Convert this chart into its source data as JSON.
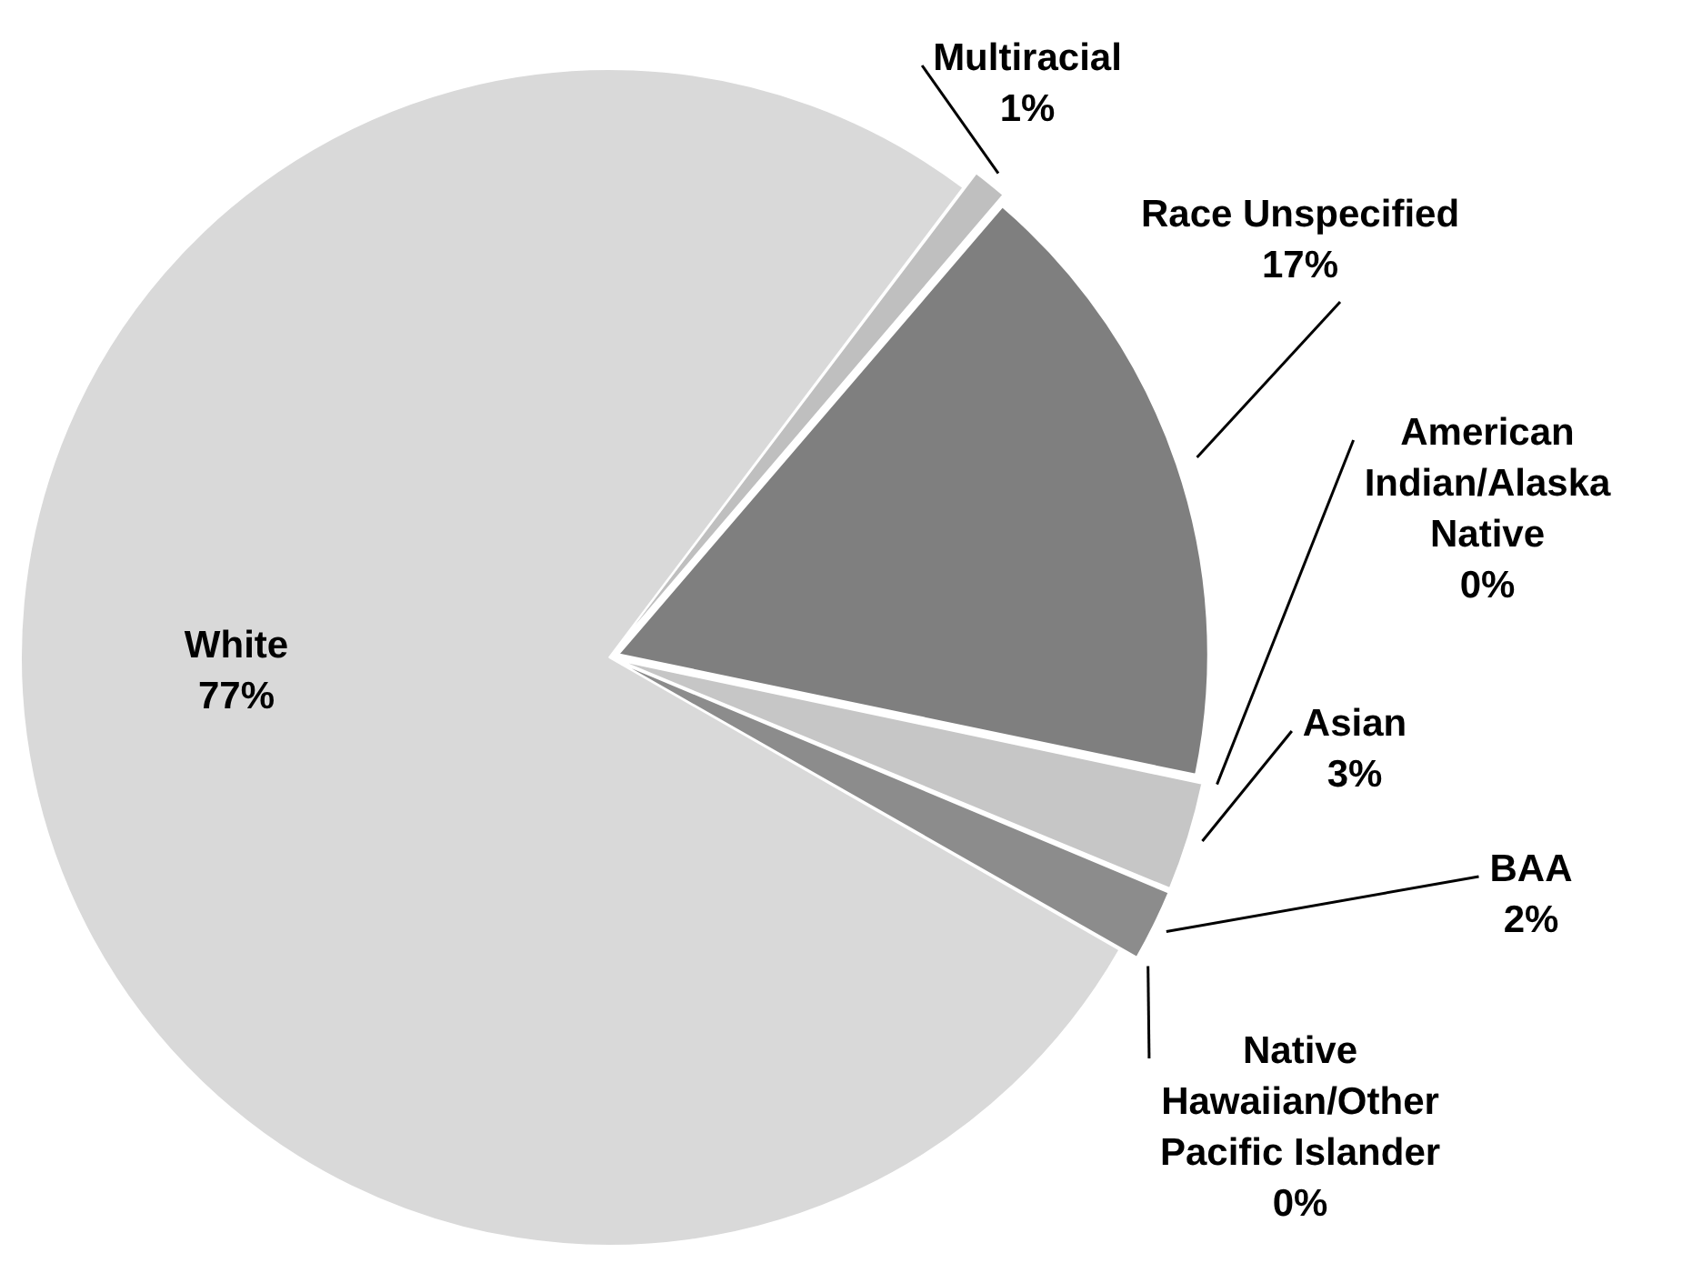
{
  "chart_data": {
    "type": "pie",
    "categories": [
      "Multiracial",
      "Race Unspecified",
      "American Indian/Alaska Native",
      "Asian",
      "BAA",
      "Native Hawaiian/Other Pacific Islander",
      "White"
    ],
    "values": [
      1,
      17,
      0,
      3,
      2,
      0,
      77
    ],
    "value_labels": [
      "1%",
      "17%",
      "0%",
      "3%",
      "2%",
      "0%",
      "77%"
    ],
    "colors": [
      "#bfbfbf",
      "#7f7f7f",
      "#595959",
      "#c6c6c6",
      "#8c8c8c",
      "#a6a6a6",
      "#d9d9d9"
    ],
    "legend": false
  }
}
